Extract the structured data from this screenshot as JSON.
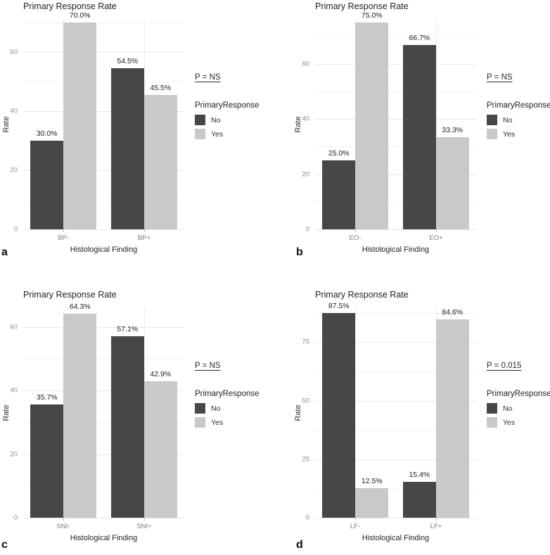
{
  "figure": {
    "background": "#ffffff"
  },
  "colors": {
    "bar_no": "#474747",
    "bar_yes": "#c9c9c9",
    "grid_major": "#e7e7e7",
    "grid_minor": "#f3f3f3",
    "axis_text": "#8a8a8a",
    "text_dark": "#1f1f1f"
  },
  "legend": {
    "title": "PrimaryResponse",
    "items": [
      {
        "label": "No",
        "color": "#474747"
      },
      {
        "label": "Yes",
        "color": "#c9c9c9"
      }
    ]
  },
  "chart_data": [
    {
      "type": "bar",
      "panel_letter": "a",
      "title": "Primary Response Rate",
      "p_label": "P = NS",
      "xlabel": "Histological Finding",
      "ylabel": "Rate",
      "categories": [
        "BP-",
        "BP+"
      ],
      "series": [
        {
          "name": "No",
          "values": [
            30.0,
            54.5
          ],
          "labels": [
            "30.0%",
            "54.5%"
          ]
        },
        {
          "name": "Yes",
          "values": [
            70.0,
            45.5
          ],
          "labels": [
            "70.0%",
            "45.5%"
          ]
        }
      ],
      "yticks": [
        0,
        20,
        40,
        60
      ],
      "minor_ticks": [
        10,
        30,
        50,
        70
      ],
      "ylim": [
        0,
        71
      ],
      "grid": true,
      "legend_position": "right"
    },
    {
      "type": "bar",
      "panel_letter": "b",
      "title": "Primary Response Rate",
      "p_label": "P = NS",
      "xlabel": "Histological Finding",
      "ylabel": "Rate",
      "categories": [
        "EO-",
        "EO+"
      ],
      "series": [
        {
          "name": "No",
          "values": [
            25.0,
            66.7
          ],
          "labels": [
            "25.0%",
            "66.7%"
          ]
        },
        {
          "name": "Yes",
          "values": [
            75.0,
            33.3
          ],
          "labels": [
            "75.0%",
            "33.3%"
          ]
        }
      ],
      "yticks": [
        0,
        20,
        40,
        60
      ],
      "minor_ticks": [
        10,
        30,
        50,
        70
      ],
      "ylim": [
        0,
        76
      ],
      "grid": true,
      "legend_position": "right"
    },
    {
      "type": "bar",
      "panel_letter": "c",
      "title": "Primary Response Rate",
      "p_label": "P = NS",
      "xlabel": "Histological Finding",
      "ylabel": "Rate",
      "categories": [
        "SNI-",
        "SNI+"
      ],
      "series": [
        {
          "name": "No",
          "values": [
            35.7,
            57.1
          ],
          "labels": [
            "35.7%",
            "57.1%"
          ]
        },
        {
          "name": "Yes",
          "values": [
            64.3,
            42.9
          ],
          "labels": [
            "64.3%",
            "42.9%"
          ]
        }
      ],
      "yticks": [
        0,
        20,
        40,
        60
      ],
      "minor_ticks": [
        10,
        30,
        50,
        70
      ],
      "ylim": [
        0,
        66
      ],
      "grid": true,
      "legend_position": "right"
    },
    {
      "type": "bar",
      "panel_letter": "d",
      "title": "Primary Response Rate",
      "p_label": "P = 0.015",
      "xlabel": "Histological Finding",
      "ylabel": "Rate",
      "categories": [
        "LF-",
        "LF+"
      ],
      "series": [
        {
          "name": "No",
          "values": [
            87.5,
            15.4
          ],
          "labels": [
            "87.5%",
            "15.4%"
          ]
        },
        {
          "name": "Yes",
          "values": [
            12.5,
            84.6
          ],
          "labels": [
            "12.5%",
            "84.6%"
          ]
        }
      ],
      "yticks": [
        0,
        25,
        50,
        75
      ],
      "minor_ticks": [
        12.5,
        37.5,
        62.5,
        87.5
      ],
      "ylim": [
        0,
        89.5
      ],
      "grid": true,
      "legend_position": "right"
    }
  ]
}
